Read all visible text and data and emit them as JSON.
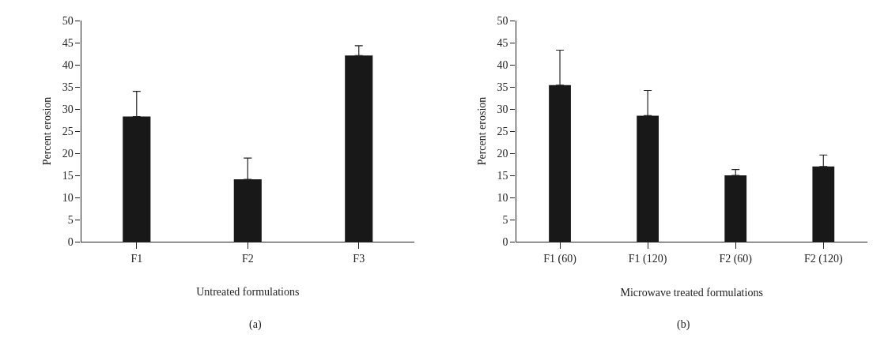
{
  "chart_data": [
    {
      "type": "bar",
      "xlabel": "Untreated formulations",
      "ylabel": "Percent erosion",
      "categories": [
        "F1",
        "F2",
        "F3"
      ],
      "series": [
        {
          "color": "#181818",
          "values": [
            28.3,
            14.1,
            42.1
          ],
          "errors": [
            [
              28.3,
              34.0
            ],
            [
              14.1,
              18.9
            ],
            [
              42.1,
              44.3
            ]
          ]
        }
      ],
      "ylim": [
        0,
        50
      ],
      "yticks": [
        0,
        5,
        10,
        15,
        20,
        25,
        30,
        35,
        40,
        45,
        50
      ],
      "annotations": [
        "(a)"
      ]
    },
    {
      "type": "bar",
      "xlabel": "Microwave treated formulations",
      "ylabel": "Percent erosion",
      "categories": [
        "F1 (60)",
        "F1 (120)",
        "F2 (60)",
        "F2 (120)"
      ],
      "series": [
        {
          "color": "#181818",
          "values": [
            35.4,
            28.5,
            15.0,
            17.0
          ],
          "errors": [
            [
              35.4,
              43.3
            ],
            [
              28.5,
              34.2
            ],
            [
              15.0,
              16.3
            ],
            [
              17.0,
              19.6
            ]
          ]
        }
      ],
      "ylim": [
        0,
        50
      ],
      "yticks": [
        0,
        5,
        10,
        15,
        20,
        25,
        30,
        35,
        40,
        45,
        50
      ],
      "annotations": [
        "(b)"
      ]
    }
  ]
}
